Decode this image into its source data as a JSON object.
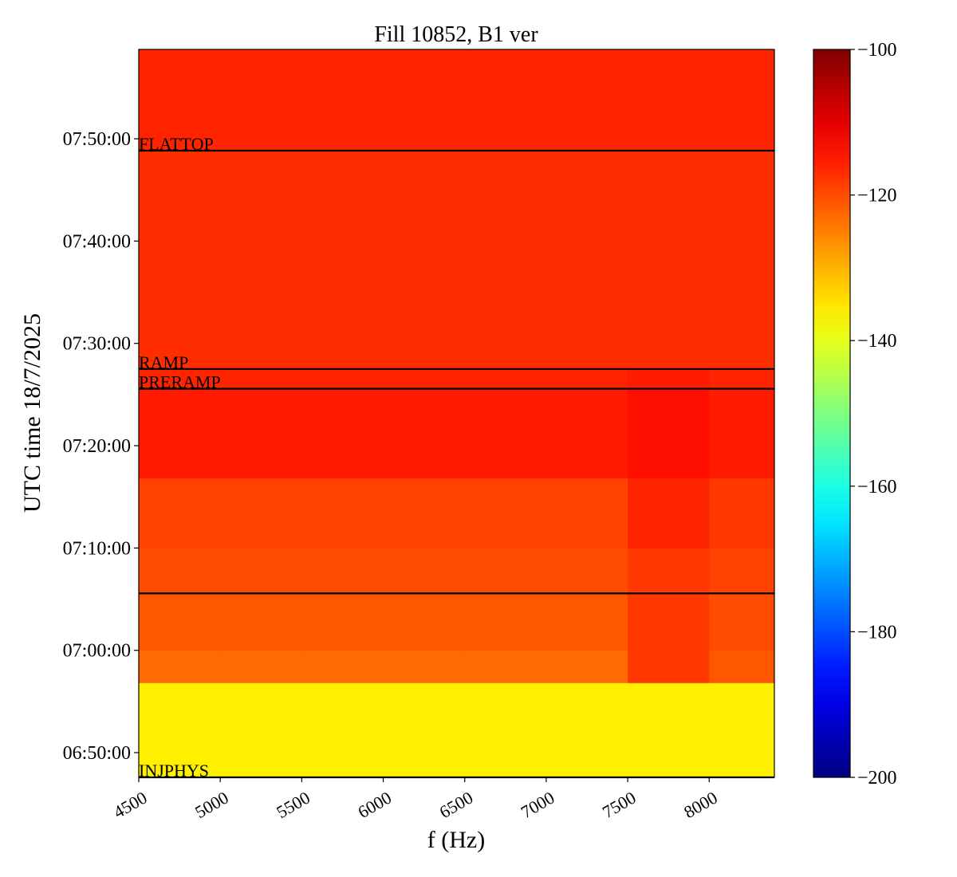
{
  "chart_data": {
    "type": "heatmap",
    "title": "Fill 10852, B1 ver",
    "xlabel": "f (Hz)",
    "ylabel": "UTC time 18/7/2025",
    "xlim": [
      4500,
      8400
    ],
    "xticks": [
      4500,
      5000,
      5500,
      6000,
      6500,
      7000,
      7500,
      8000
    ],
    "ylim": [
      "06:47:35",
      "07:58:44"
    ],
    "yticks": [
      "06:50:00",
      "07:00:00",
      "07:10:00",
      "07:20:00",
      "07:30:00",
      "07:40:00",
      "07:50:00"
    ],
    "x_bins": [
      4500,
      5000,
      5500,
      6000,
      6500,
      7000,
      7500,
      8000,
      8400
    ],
    "y_bins": [
      "06:47:35",
      "06:56:50",
      "07:00:00",
      "07:05:34",
      "07:10:00",
      "07:16:50",
      "07:25:34",
      "07:27:30",
      "07:48:50",
      "07:58:44"
    ],
    "values": [
      [
        -136,
        -136,
        -136,
        -136,
        -136,
        -136,
        -136,
        -136
      ],
      [
        -123,
        -123,
        -123,
        -123,
        -123,
        -123,
        -118,
        -121
      ],
      [
        -121,
        -121,
        -121,
        -121,
        -121,
        -121,
        -118,
        -120
      ],
      [
        -120,
        -120,
        -120,
        -120,
        -120,
        -120,
        -118,
        -119
      ],
      [
        -119,
        -119,
        -119,
        -119,
        -119,
        -119,
        -116,
        -118
      ],
      [
        -115,
        -115,
        -115,
        -115,
        -115,
        -115,
        -114,
        -115
      ],
      [
        -116,
        -116,
        -116,
        -116,
        -116,
        -116,
        -115,
        -116
      ],
      [
        -117,
        -117,
        -117,
        -117,
        -117,
        -117,
        -117,
        -117
      ],
      [
        -116,
        -116,
        -116,
        -116,
        -116,
        -116,
        -116,
        -116
      ]
    ],
    "cmap": "jet",
    "clim": [
      -200,
      -100
    ],
    "cticks": [
      {
        "value": -100,
        "label": "−100"
      },
      {
        "value": -120,
        "label": "−120"
      },
      {
        "value": -140,
        "label": "−140"
      },
      {
        "value": -160,
        "label": "−160"
      },
      {
        "value": -180,
        "label": "−180"
      },
      {
        "value": -200,
        "label": "−200"
      }
    ],
    "annotations": [
      {
        "time": "07:48:50",
        "label": "FLATTOP"
      },
      {
        "time": "07:27:30",
        "label": "RAMP"
      },
      {
        "time": "07:25:34",
        "label": "PRERAMP"
      },
      {
        "time": "07:05:34"
      },
      {
        "time": "06:47:35",
        "label": "INJPHYS"
      }
    ]
  }
}
